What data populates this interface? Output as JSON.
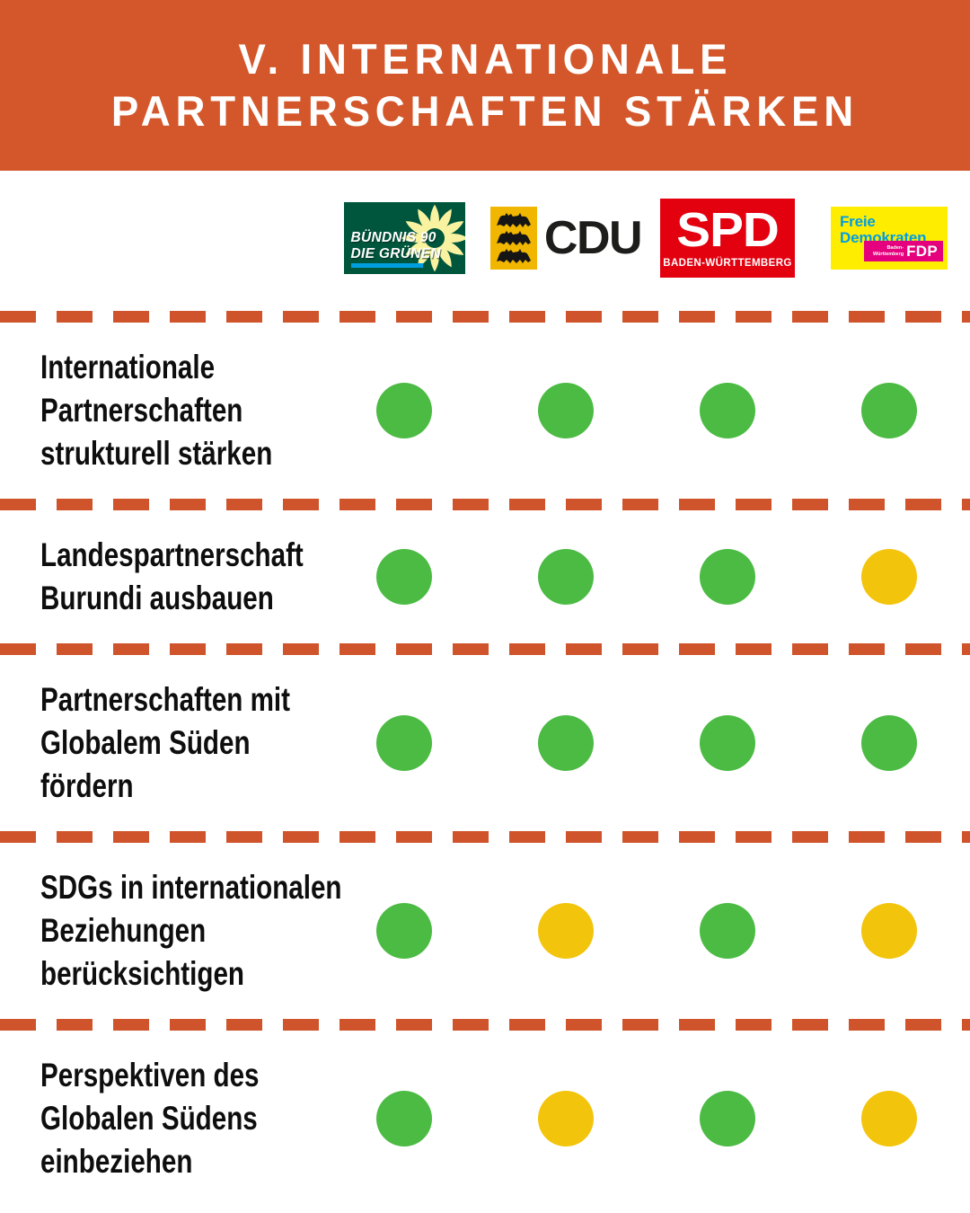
{
  "header": {
    "title_line1": "V. INTERNATIONALE",
    "title_line2": "PARTNERSCHAFTEN STÄRKEN"
  },
  "colors": {
    "header_bg": "#D4572B",
    "divider": "#D0542B",
    "dot_green": "#4CBB44",
    "dot_yellow": "#F3C40C",
    "gruene_bg": "#00563C",
    "gruene_accent_bar": "#009EE0",
    "gruene_flower": "#F9F3A1",
    "cdu_crest_bg": "#F0B600",
    "cdu_text": "#1D1D1B",
    "spd_bg": "#E3000F",
    "fdp_bg": "#FFED00",
    "fdp_text": "#009EE3",
    "fdp_badge_bg": "#E5007D"
  },
  "parties": [
    {
      "id": "gruene",
      "name": "Bündnis 90/Die Grünen",
      "logo_line1": "BÜNDNIS 90",
      "logo_line2": "DIE GRÜNEN"
    },
    {
      "id": "cdu",
      "name": "CDU",
      "logo_text": "CDU"
    },
    {
      "id": "spd",
      "name": "SPD Baden-Württemberg",
      "logo_text": "SPD",
      "logo_subtext": "BADEN-WÜRTTEMBERG"
    },
    {
      "id": "fdp",
      "name": "Freie Demokraten FDP Baden-Württemberg",
      "logo_line1": "Freie",
      "logo_line2": "Demokraten",
      "badge_line1": "Baden-",
      "badge_line2": "Württemberg",
      "badge_text": "FDP"
    }
  ],
  "matrix": {
    "rows": [
      {
        "label": "Internationale Partnerschaften strukturell stärken",
        "label_lines": [
          "Internationale",
          "Partnerschaften",
          "strukturell stärken"
        ],
        "ratings": [
          "green",
          "green",
          "green",
          "green"
        ]
      },
      {
        "label": "Landespartnerschaft Burundi ausbauen",
        "label_lines": [
          "Landespartnerschaft",
          "Burundi ausbauen"
        ],
        "ratings": [
          "green",
          "green",
          "green",
          "yellow"
        ]
      },
      {
        "label": "Partnerschaften mit Globalem Süden fördern",
        "label_lines": [
          "Partnerschaften mit",
          "Globalem Süden",
          "fördern"
        ],
        "ratings": [
          "green",
          "green",
          "green",
          "green"
        ]
      },
      {
        "label": "SDGs in internationalen Beziehungen berücksichtigen",
        "label_lines": [
          "SDGs in internationalen",
          "Beziehungen",
          "berücksichtigen"
        ],
        "ratings": [
          "green",
          "yellow",
          "green",
          "yellow"
        ]
      },
      {
        "label": "Perspektiven des Globalen Südens einbeziehen",
        "label_lines": [
          "Perspektiven des",
          "Globalen Südens",
          "einbeziehen"
        ],
        "ratings": [
          "green",
          "yellow",
          "green",
          "yellow"
        ]
      }
    ]
  },
  "chart_data": {
    "type": "table",
    "title": "V. Internationale Partnerschaften stärken",
    "columns": [
      "Bündnis 90/Die Grünen",
      "CDU",
      "SPD Baden-Württemberg",
      "Freie Demokraten FDP"
    ],
    "rows": [
      "Internationale Partnerschaften strukturell stärken",
      "Landespartnerschaft Burundi ausbauen",
      "Partnerschaften mit Globalem Süden fördern",
      "SDGs in internationalen Beziehungen berücksichtigen",
      "Perspektiven des Globalen Südens einbeziehen"
    ],
    "values": [
      [
        "green",
        "green",
        "green",
        "green"
      ],
      [
        "green",
        "green",
        "green",
        "yellow"
      ],
      [
        "green",
        "green",
        "green",
        "green"
      ],
      [
        "green",
        "yellow",
        "green",
        "yellow"
      ],
      [
        "green",
        "yellow",
        "green",
        "yellow"
      ]
    ],
    "legend": {
      "green": "#4CBB44",
      "yellow": "#F3C40C"
    }
  }
}
